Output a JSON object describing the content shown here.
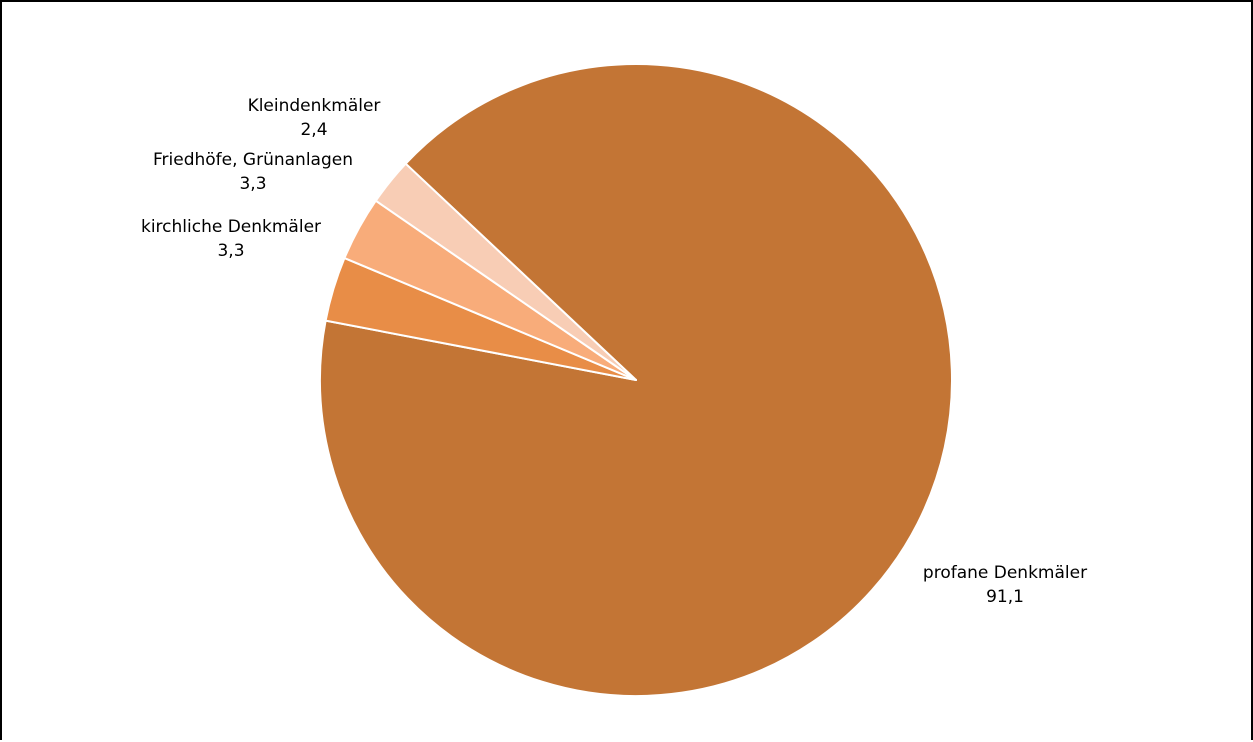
{
  "chart_data": {
    "type": "pie",
    "slices": [
      {
        "label": "profane Denkmäler",
        "value": 91.1,
        "value_label": "91,1",
        "color": "#C37535"
      },
      {
        "label": "kirchliche Denkmäler",
        "value": 3.3,
        "value_label": "3,3",
        "color": "#E88D47"
      },
      {
        "label": "Friedhöfe, Grünanlagen",
        "value": 3.3,
        "value_label": "3,3",
        "color": "#F8AC7A"
      },
      {
        "label": "Kleindenkmäler",
        "value": 2.4,
        "value_label": "2,4",
        "color": "#F8CDB5"
      }
    ],
    "legend": "none",
    "data_labels": "outside"
  }
}
